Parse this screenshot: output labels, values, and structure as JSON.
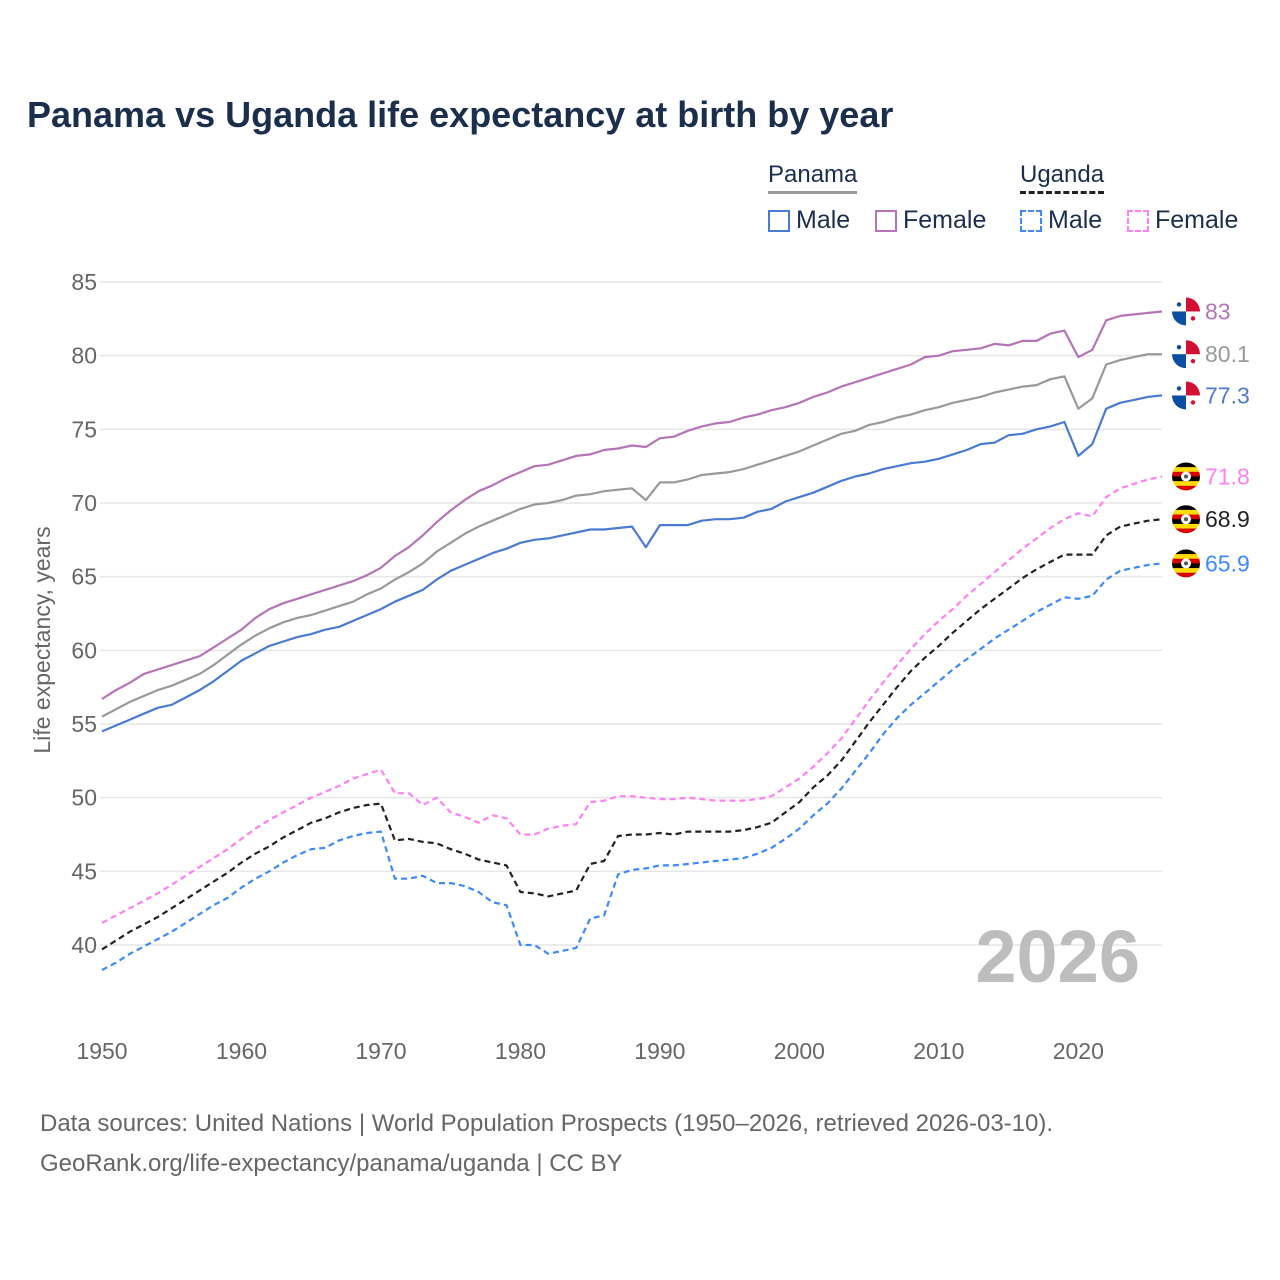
{
  "title": "Panama vs Uganda life expectancy at birth by year",
  "legend": {
    "groups": [
      {
        "name": "Panama",
        "items": [
          {
            "label": "Male",
            "color": "#4a7bd0"
          },
          {
            "label": "Female",
            "color": "#b474b5"
          }
        ]
      },
      {
        "name": "Uganda",
        "items": [
          {
            "label": "Male",
            "color": "#3d8af7"
          },
          {
            "label": "Female",
            "color": "#ff80f0"
          }
        ]
      }
    ]
  },
  "year_watermark": "2026",
  "footer": {
    "line1": "Data sources: United Nations | World Population Prospects (1950–2026, retrieved 2026-03-10).",
    "line2": "GeoRank.org/life-expectancy/panama/uganda | CC BY"
  },
  "chart_data": {
    "type": "line",
    "title": "Panama vs Uganda life expectancy at birth by year",
    "xlabel": "",
    "ylabel": "Life expectancy, years",
    "xlim": [
      1950,
      2026
    ],
    "ylim": [
      37,
      85
    ],
    "x_ticks": [
      1950,
      1960,
      1970,
      1980,
      1990,
      2000,
      2010,
      2020
    ],
    "y_ticks": [
      40,
      45,
      50,
      55,
      60,
      65,
      70,
      75,
      80,
      85
    ],
    "grid": true,
    "x_start": 1950,
    "series": [
      {
        "name": "Panama Female",
        "color": "#b474b5",
        "dashed": false,
        "end_label": "83",
        "flag": "panama",
        "values": [
          56.7,
          57.3,
          57.8,
          58.4,
          58.7,
          59.0,
          59.3,
          59.6,
          60.2,
          60.8,
          61.4,
          62.2,
          62.8,
          63.2,
          63.5,
          63.8,
          64.1,
          64.4,
          64.7,
          65.1,
          65.6,
          66.4,
          67.0,
          67.8,
          68.7,
          69.5,
          70.2,
          70.8,
          71.2,
          71.7,
          72.1,
          72.5,
          72.6,
          72.9,
          73.2,
          73.3,
          73.6,
          73.7,
          73.9,
          73.8,
          74.4,
          74.5,
          74.9,
          75.2,
          75.4,
          75.5,
          75.8,
          76.0,
          76.3,
          76.5,
          76.8,
          77.2,
          77.5,
          77.9,
          78.2,
          78.5,
          78.8,
          79.1,
          79.4,
          79.9,
          80.0,
          80.3,
          80.4,
          80.5,
          80.8,
          80.7,
          81.0,
          81.0,
          81.5,
          81.7,
          79.9,
          80.4,
          82.4,
          82.7,
          82.8,
          82.9,
          83.0
        ]
      },
      {
        "name": "Panama Total",
        "color": "#999999",
        "dashed": false,
        "end_label": "80.1",
        "flag": "panama",
        "values": [
          55.5,
          56.0,
          56.5,
          56.9,
          57.3,
          57.6,
          58.0,
          58.4,
          59.0,
          59.7,
          60.4,
          61.0,
          61.5,
          61.9,
          62.2,
          62.4,
          62.7,
          63.0,
          63.3,
          63.8,
          64.2,
          64.8,
          65.3,
          65.9,
          66.7,
          67.3,
          67.9,
          68.4,
          68.8,
          69.2,
          69.6,
          69.9,
          70.0,
          70.2,
          70.5,
          70.6,
          70.8,
          70.9,
          71.0,
          70.2,
          71.4,
          71.4,
          71.6,
          71.9,
          72.0,
          72.1,
          72.3,
          72.6,
          72.9,
          73.2,
          73.5,
          73.9,
          74.3,
          74.7,
          74.9,
          75.3,
          75.5,
          75.8,
          76.0,
          76.3,
          76.5,
          76.8,
          77.0,
          77.2,
          77.5,
          77.7,
          77.9,
          78.0,
          78.4,
          78.6,
          76.4,
          77.1,
          79.4,
          79.7,
          79.9,
          80.1,
          80.1
        ]
      },
      {
        "name": "Panama Male",
        "color": "#4a7bd0",
        "dashed": false,
        "end_label": "77.3",
        "flag": "panama",
        "values": [
          54.5,
          54.9,
          55.3,
          55.7,
          56.1,
          56.3,
          56.8,
          57.3,
          57.9,
          58.6,
          59.3,
          59.8,
          60.3,
          60.6,
          60.9,
          61.1,
          61.4,
          61.6,
          62.0,
          62.4,
          62.8,
          63.3,
          63.7,
          64.1,
          64.8,
          65.4,
          65.8,
          66.2,
          66.6,
          66.9,
          67.3,
          67.5,
          67.6,
          67.8,
          68.0,
          68.2,
          68.2,
          68.3,
          68.4,
          67.0,
          68.5,
          68.5,
          68.5,
          68.8,
          68.9,
          68.9,
          69.0,
          69.4,
          69.6,
          70.1,
          70.4,
          70.7,
          71.1,
          71.5,
          71.8,
          72.0,
          72.3,
          72.5,
          72.7,
          72.8,
          73.0,
          73.3,
          73.6,
          74.0,
          74.1,
          74.6,
          74.7,
          75.0,
          75.2,
          75.5,
          73.2,
          74.0,
          76.4,
          76.8,
          77.0,
          77.2,
          77.3
        ]
      },
      {
        "name": "Uganda Female",
        "color": "#ff80f0",
        "dashed": true,
        "end_label": "71.8",
        "flag": "uganda",
        "values": [
          41.5,
          42.0,
          42.5,
          43.0,
          43.5,
          44.1,
          44.7,
          45.3,
          45.9,
          46.5,
          47.2,
          47.9,
          48.5,
          49.0,
          49.5,
          50.0,
          50.4,
          50.8,
          51.3,
          51.6,
          51.9,
          50.3,
          50.3,
          49.5,
          50.0,
          49.0,
          48.7,
          48.3,
          48.8,
          48.6,
          47.5,
          47.5,
          47.9,
          48.1,
          48.2,
          49.7,
          49.8,
          50.1,
          50.1,
          50.0,
          49.9,
          49.9,
          50.0,
          49.9,
          49.8,
          49.8,
          49.8,
          49.9,
          50.1,
          50.7,
          51.3,
          52.1,
          53.0,
          54.0,
          55.3,
          56.6,
          57.8,
          59.0,
          60.1,
          61.1,
          62.0,
          62.8,
          63.7,
          64.5,
          65.3,
          66.1,
          66.9,
          67.6,
          68.3,
          68.9,
          69.3,
          69.1,
          70.4,
          71.0,
          71.3,
          71.6,
          71.8
        ]
      },
      {
        "name": "Uganda Total",
        "color": "#222222",
        "dashed": true,
        "end_label": "68.9",
        "flag": "uganda",
        "values": [
          39.7,
          40.3,
          40.9,
          41.4,
          41.9,
          42.5,
          43.1,
          43.7,
          44.3,
          44.9,
          45.6,
          46.2,
          46.7,
          47.3,
          47.8,
          48.3,
          48.6,
          49.0,
          49.3,
          49.5,
          49.6,
          47.1,
          47.2,
          47.0,
          46.9,
          46.5,
          46.2,
          45.8,
          45.6,
          45.4,
          43.6,
          43.5,
          43.3,
          43.5,
          43.7,
          45.5,
          45.7,
          47.4,
          47.5,
          47.5,
          47.6,
          47.5,
          47.7,
          47.7,
          47.7,
          47.7,
          47.8,
          48.0,
          48.3,
          49.0,
          49.7,
          50.7,
          51.5,
          52.5,
          53.8,
          55.1,
          56.3,
          57.5,
          58.6,
          59.5,
          60.3,
          61.2,
          62.0,
          62.8,
          63.5,
          64.2,
          64.9,
          65.5,
          66.0,
          66.5,
          66.5,
          66.5,
          67.8,
          68.4,
          68.6,
          68.8,
          68.9
        ]
      },
      {
        "name": "Uganda Male",
        "color": "#3d8af7",
        "dashed": true,
        "end_label": "65.9",
        "flag": "uganda",
        "values": [
          38.3,
          38.8,
          39.4,
          39.9,
          40.4,
          40.9,
          41.5,
          42.1,
          42.7,
          43.2,
          43.9,
          44.5,
          45.0,
          45.6,
          46.1,
          46.5,
          46.6,
          47.1,
          47.4,
          47.6,
          47.7,
          44.5,
          44.5,
          44.7,
          44.2,
          44.2,
          44.0,
          43.6,
          42.9,
          42.7,
          40.0,
          40.0,
          39.4,
          39.6,
          39.8,
          41.8,
          42.0,
          44.8,
          45.1,
          45.2,
          45.4,
          45.4,
          45.5,
          45.6,
          45.7,
          45.8,
          45.9,
          46.2,
          46.6,
          47.2,
          47.9,
          48.8,
          49.6,
          50.6,
          51.8,
          53.0,
          54.3,
          55.4,
          56.3,
          57.1,
          57.9,
          58.7,
          59.4,
          60.1,
          60.8,
          61.4,
          62.0,
          62.6,
          63.1,
          63.6,
          63.5,
          63.7,
          64.8,
          65.4,
          65.6,
          65.8,
          65.9
        ]
      }
    ]
  }
}
